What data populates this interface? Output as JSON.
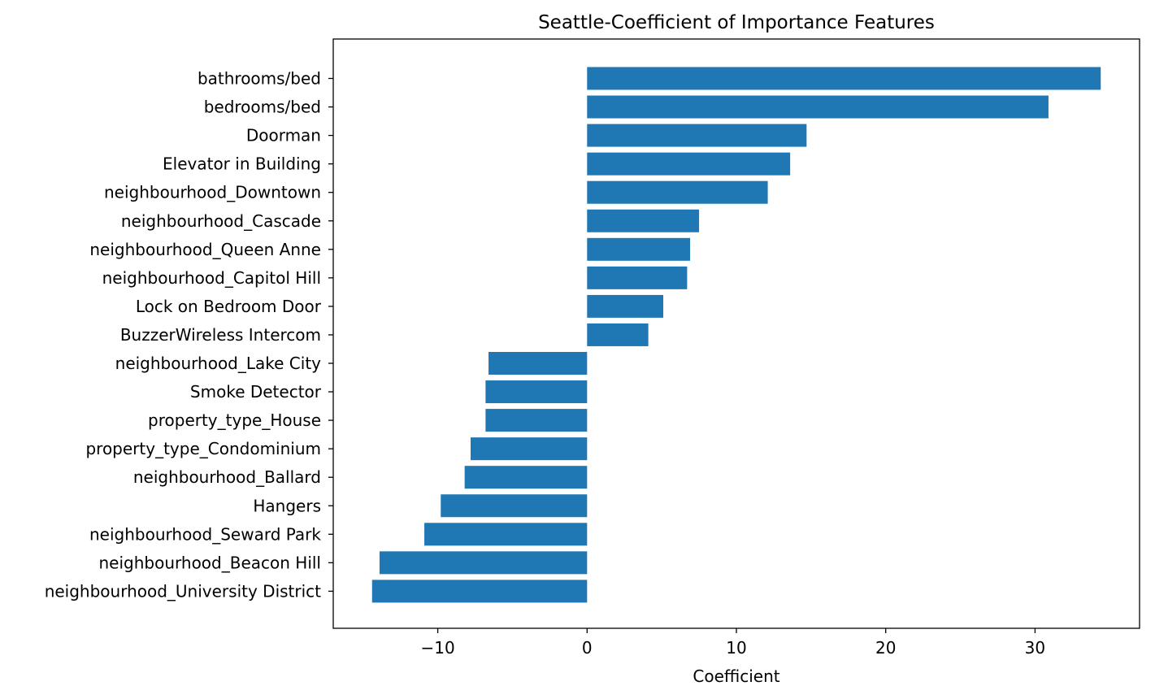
{
  "chart_data": {
    "type": "bar",
    "orientation": "horizontal",
    "title": "Seattle-Coefficient of Importance Features",
    "xlabel": "Coefficient",
    "ylabel": "",
    "xlim": [
      -17,
      37
    ],
    "x_ticks": [
      -10,
      0,
      10,
      20,
      30
    ],
    "x_tick_labels": [
      "−10",
      "0",
      "10",
      "20",
      "30"
    ],
    "grid": false,
    "bar_color": "#1f77b4",
    "categories": [
      "bathrooms/bed",
      "bedrooms/bed",
      "Doorman",
      "Elevator in Building",
      "neighbourhood_Downtown",
      "neighbourhood_Cascade",
      "neighbourhood_Queen Anne",
      "neighbourhood_Capitol Hill",
      "Lock on Bedroom Door",
      "BuzzerWireless Intercom",
      "neighbourhood_Lake City",
      "Smoke Detector",
      "property_type_House",
      "property_type_Condominium",
      "neighbourhood_Ballard",
      "Hangers",
      "neighbourhood_Seward Park",
      "neighbourhood_Beacon Hill",
      "neighbourhood_University District"
    ],
    "values": [
      34.4,
      30.9,
      14.7,
      13.6,
      12.1,
      7.5,
      6.9,
      6.7,
      5.1,
      4.1,
      -6.6,
      -6.8,
      -6.8,
      -7.8,
      -8.2,
      -9.8,
      -10.9,
      -13.9,
      -14.4
    ]
  }
}
